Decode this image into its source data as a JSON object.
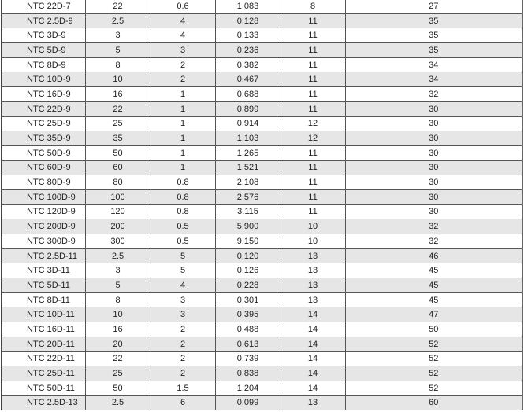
{
  "table": {
    "rows": [
      [
        "NTC  22D-7",
        "22",
        "0.6",
        "1.083",
        "8",
        "27"
      ],
      [
        "NTC  2.5D-9",
        "2.5",
        "4",
        "0.128",
        "11",
        "35"
      ],
      [
        "NTC  3D-9",
        "3",
        "4",
        "0.133",
        "11",
        "35"
      ],
      [
        "NTC  5D-9",
        "5",
        "3",
        "0.236",
        "11",
        "35"
      ],
      [
        "NTC  8D-9",
        "8",
        "2",
        "0.382",
        "11",
        "34"
      ],
      [
        "NTC  10D-9",
        "10",
        "2",
        "0.467",
        "11",
        "34"
      ],
      [
        "NTC 16D-9",
        "16",
        "1",
        "0.688",
        "11",
        "32"
      ],
      [
        "NTC  22D-9",
        "22",
        "1",
        "0.899",
        "11",
        "30"
      ],
      [
        "NTC  25D-9",
        "25",
        "1",
        "0.914",
        "12",
        "30"
      ],
      [
        "NTC  35D-9",
        "35",
        "1",
        "1.103",
        "12",
        "30"
      ],
      [
        "NTC 50D-9",
        "50",
        "1",
        "1.265",
        "11",
        "30"
      ],
      [
        "NTC  60D-9",
        "60",
        "1",
        "1.521",
        "11",
        "30"
      ],
      [
        "NTC  80D-9",
        "80",
        "0.8",
        "2.108",
        "11",
        "30"
      ],
      [
        "NTC  100D-9",
        "100",
        "0.8",
        "2.576",
        "11",
        "30"
      ],
      [
        "NTC  120D-9",
        "120",
        "0.8",
        "3.115",
        "11",
        "30"
      ],
      [
        "NTC  200D-9",
        "200",
        "0.5",
        "5.900",
        "10",
        "32"
      ],
      [
        "NTC  300D-9",
        "300",
        "0.5",
        "9.150",
        "10",
        "32"
      ],
      [
        "NTC  2.5D-11",
        "2.5",
        "5",
        "0.120",
        "13",
        "46"
      ],
      [
        "NTC  3D-11",
        "3",
        "5",
        "0.126",
        "13",
        "45"
      ],
      [
        "NTC  5D-11",
        "5",
        "4",
        "0.228",
        "13",
        "45"
      ],
      [
        "NTC  8D-11",
        "8",
        "3",
        "0.301",
        "13",
        "45"
      ],
      [
        "NTC 10D-11",
        "10",
        "3",
        "0.395",
        "14",
        "47"
      ],
      [
        "NTC 16D-11",
        "16",
        "2",
        "0.488",
        "14",
        "50"
      ],
      [
        "NTC 20D-11",
        "20",
        "2",
        "0.613",
        "14",
        "52"
      ],
      [
        "NTC  22D-11",
        "22",
        "2",
        "0.739",
        "14",
        "52"
      ],
      [
        "NTC 25D-11",
        "25",
        "2",
        "0.838",
        "14",
        "52"
      ],
      [
        "NTC 50D-11",
        "50",
        "1.5",
        "1.204",
        "14",
        "52"
      ],
      [
        "NTC  2.5D-13",
        "2.5",
        "6",
        "0.099",
        "13",
        "60"
      ]
    ]
  },
  "colors": {
    "shaded_row": "#e6e6e6",
    "border": "#555555"
  }
}
